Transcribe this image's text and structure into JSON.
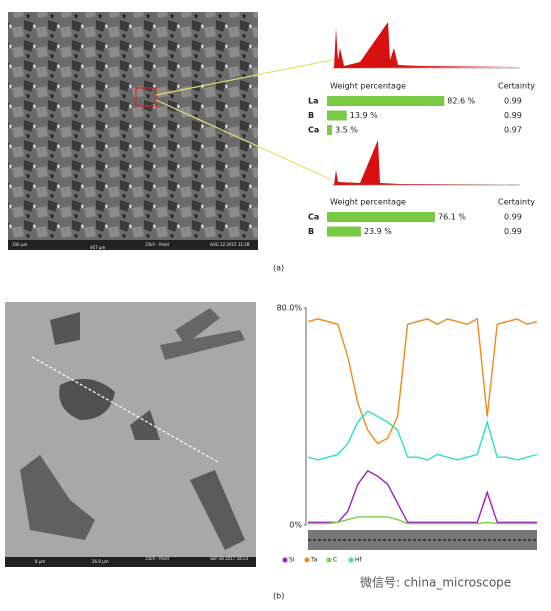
{
  "panel_a": {
    "caption": "(a)",
    "image_labels": [
      "100 μm",
      "15kV - Point",
      "AUG 12 2015 11:28",
      "467 μm"
    ],
    "spectrum_1": {
      "header": "Weight percentage",
      "certainty_header": "Certainty",
      "rows": [
        {
          "element": "La",
          "value": 82.6,
          "value_label": "82.6 %",
          "certainty": 0.99
        },
        {
          "element": "B",
          "value": 13.9,
          "value_label": "13.9 %",
          "certainty": 0.99
        },
        {
          "element": "Ca",
          "value": 3.5,
          "value_label": "3.5 %",
          "certainty": 0.97
        }
      ]
    },
    "spectrum_2": {
      "header": "Weight percentage",
      "certainty_header": "Certainty",
      "rows": [
        {
          "element": "Ca",
          "value": 76.1,
          "value_label": "76.1 %",
          "certainty": 0.99
        },
        {
          "element": "B",
          "value": 23.9,
          "value_label": "23.9 %",
          "certainty": 0.99
        }
      ]
    }
  },
  "panel_b": {
    "caption": "(b)",
    "image_labels": [
      "8 μm",
      "26.9 μm",
      "15kV - Point",
      "SEP 28 2017 18:13"
    ]
  },
  "line_scan": {
    "type": "line",
    "ylim": [
      0,
      80
    ],
    "yticks": [
      {
        "value": 80,
        "label": "80.0%"
      },
      {
        "value": 0,
        "label": "0%"
      }
    ],
    "series": [
      {
        "name": "Si",
        "color": "#a020c8",
        "values": [
          1,
          1,
          1,
          1,
          5,
          15,
          20,
          18,
          15,
          8,
          1,
          1,
          1,
          1,
          1,
          1,
          1,
          1,
          12,
          1,
          1,
          1,
          1,
          1
        ]
      },
      {
        "name": "Ta",
        "color": "#f08a1e",
        "values": [
          75,
          76,
          75,
          74,
          62,
          45,
          35,
          30,
          32,
          40,
          74,
          75,
          76,
          74,
          76,
          75,
          74,
          76,
          40,
          74,
          75,
          76,
          74,
          75
        ]
      },
      {
        "name": "C",
        "color": "#7ad23c",
        "values": [
          0.5,
          0.5,
          0.5,
          1,
          2,
          3,
          3,
          3,
          3,
          2,
          0.5,
          0.5,
          0.5,
          0.5,
          0.5,
          0.5,
          0.5,
          0.5,
          1,
          0.5,
          0.5,
          0.5,
          0.5,
          0.5
        ]
      },
      {
        "name": "Hf",
        "color": "#2ee0c8",
        "values": [
          25,
          24,
          25,
          26,
          30,
          38,
          42,
          40,
          38,
          35,
          25,
          25,
          24,
          26,
          25,
          24,
          25,
          26,
          38,
          25,
          25,
          24,
          25,
          26
        ]
      }
    ]
  },
  "watermark": "微信号: china_microscope"
}
